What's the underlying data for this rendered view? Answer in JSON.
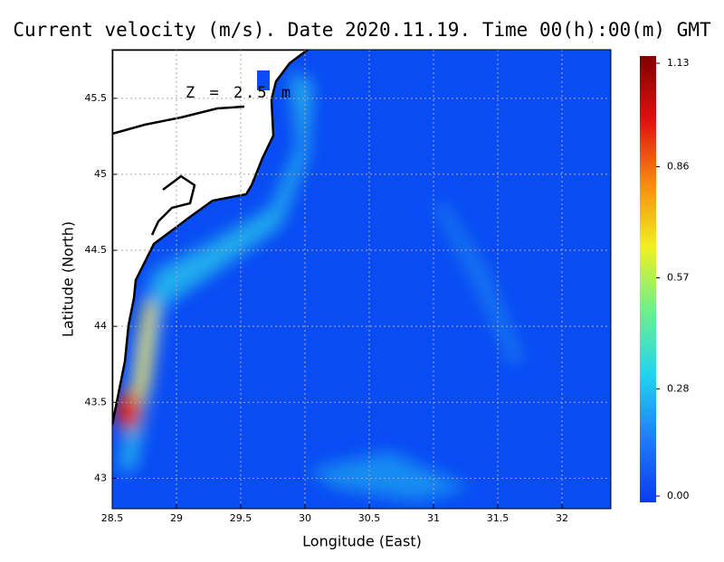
{
  "chart_data": {
    "type": "map",
    "title": "Current velocity (m/s). Date 2020.11.19. Time 00(h):00(m) GMT",
    "annotation": "Z = 2.5 m",
    "x_label": "Longitude (East)",
    "y_label": "Latitude (North)",
    "xlim": [
      28.5,
      32.38
    ],
    "ylim": [
      42.8,
      45.82
    ],
    "xticks": [
      28.5,
      29,
      29.5,
      30,
      30.5,
      31,
      31.5,
      32
    ],
    "yticks": [
      43,
      43.5,
      44,
      44.5,
      45,
      45.5
    ],
    "grid": true,
    "colorbar": {
      "lim": [
        0,
        1.13
      ],
      "ticks": [
        {
          "value": 0,
          "label": "0.00"
        },
        0.28,
        0.57,
        0.86,
        1.13
      ],
      "colors": [
        "#0a3cf0",
        "#1f7cf8",
        "#22d4f0",
        "#6cf08c",
        "#f0f020",
        "#f88a10",
        "#e01010",
        "#800000"
      ]
    }
  }
}
